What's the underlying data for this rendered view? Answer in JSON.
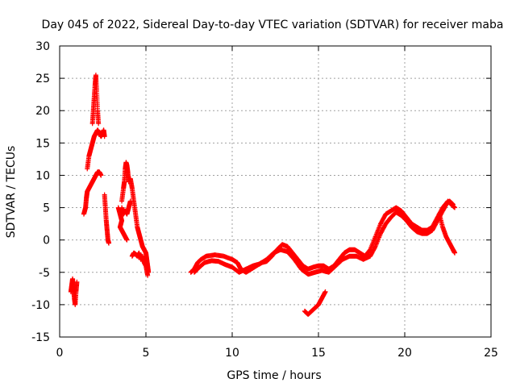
{
  "chart_data": {
    "type": "scatter",
    "title": "Day 045 of 2022, Sidereal Day-to-day VTEC variation (SDTVAR) for receiver maba",
    "xlabel": "GPS time / hours",
    "ylabel": "SDTVAR / TECUs",
    "xlim": [
      0,
      25
    ],
    "ylim": [
      -15,
      30
    ],
    "xticks": [
      0,
      5,
      10,
      15,
      20,
      25
    ],
    "yticks": [
      -15,
      -10,
      -5,
      0,
      5,
      10,
      15,
      20,
      25,
      30
    ],
    "grid": true,
    "marker": "+",
    "color": "#ff0000",
    "series": [
      {
        "name": "seg1",
        "points": [
          [
            0.65,
            -8
          ],
          [
            0.7,
            -7
          ],
          [
            0.75,
            -6
          ],
          [
            0.8,
            -7.5
          ],
          [
            0.85,
            -9
          ],
          [
            0.9,
            -10
          ],
          [
            0.95,
            -8
          ],
          [
            1.0,
            -6.5
          ]
        ]
      },
      {
        "name": "seg2",
        "points": [
          [
            1.4,
            4
          ],
          [
            1.5,
            5
          ],
          [
            1.55,
            6.5
          ],
          [
            1.6,
            7.5
          ],
          [
            1.7,
            8
          ],
          [
            1.8,
            8.5
          ],
          [
            1.9,
            9
          ],
          [
            2.0,
            9.5
          ],
          [
            2.1,
            10
          ],
          [
            2.2,
            10.5
          ],
          [
            2.3,
            10.5
          ],
          [
            2.4,
            10
          ]
        ]
      },
      {
        "name": "seg3",
        "points": [
          [
            1.6,
            11
          ],
          [
            1.7,
            13
          ],
          [
            1.8,
            14
          ],
          [
            1.9,
            15
          ],
          [
            2.0,
            16
          ],
          [
            2.1,
            16.5
          ],
          [
            2.2,
            17
          ],
          [
            2.3,
            16.5
          ],
          [
            2.4,
            16
          ],
          [
            2.5,
            16.5
          ],
          [
            2.55,
            17
          ],
          [
            2.6,
            16
          ]
        ]
      },
      {
        "name": "seg4",
        "points": [
          [
            1.9,
            18
          ],
          [
            1.95,
            20
          ],
          [
            2.0,
            22
          ],
          [
            2.05,
            24
          ],
          [
            2.1,
            25.5
          ],
          [
            2.15,
            23
          ],
          [
            2.2,
            20
          ],
          [
            2.25,
            18
          ]
        ]
      },
      {
        "name": "seg5",
        "points": [
          [
            2.6,
            7
          ],
          [
            2.65,
            5
          ],
          [
            2.7,
            3
          ],
          [
            2.75,
            1.5
          ],
          [
            2.8,
            0
          ],
          [
            2.85,
            -0.5
          ]
        ]
      },
      {
        "name": "seg6",
        "points": [
          [
            3.4,
            5
          ],
          [
            3.5,
            4
          ],
          [
            3.6,
            3
          ],
          [
            3.5,
            2
          ],
          [
            3.6,
            1.5
          ],
          [
            3.7,
            1
          ],
          [
            3.8,
            0.5
          ],
          [
            3.9,
            0
          ]
        ]
      },
      {
        "name": "seg7",
        "points": [
          [
            3.6,
            6
          ],
          [
            3.7,
            8
          ],
          [
            3.75,
            9
          ],
          [
            3.8,
            11
          ],
          [
            3.85,
            12
          ],
          [
            3.9,
            11.5
          ],
          [
            3.95,
            10.5
          ],
          [
            4.0,
            9
          ]
        ]
      },
      {
        "name": "seg8",
        "points": [
          [
            3.6,
            5
          ],
          [
            3.7,
            4
          ],
          [
            3.8,
            4.5
          ],
          [
            3.9,
            4
          ],
          [
            4.0,
            5
          ],
          [
            4.1,
            6
          ]
        ]
      },
      {
        "name": "seg9",
        "points": [
          [
            4.1,
            9.5
          ],
          [
            4.2,
            8
          ],
          [
            4.3,
            6
          ],
          [
            4.4,
            4
          ],
          [
            4.5,
            2
          ],
          [
            4.6,
            1
          ],
          [
            4.7,
            0
          ],
          [
            4.8,
            -1
          ],
          [
            4.9,
            -1.5
          ],
          [
            5.0,
            -2
          ],
          [
            5.05,
            -3
          ],
          [
            5.1,
            -4
          ],
          [
            5.15,
            -5
          ]
        ]
      },
      {
        "name": "seg10",
        "points": [
          [
            4.2,
            -2.5
          ],
          [
            4.3,
            -2
          ],
          [
            4.4,
            -2.2
          ],
          [
            4.5,
            -2.5
          ],
          [
            4.6,
            -2
          ],
          [
            4.7,
            -3
          ],
          [
            4.8,
            -2.5
          ],
          [
            4.9,
            -3.5
          ],
          [
            5.0,
            -4
          ],
          [
            5.1,
            -5.5
          ]
        ]
      },
      {
        "name": "seg11",
        "points": [
          [
            7.6,
            -5
          ],
          [
            7.8,
            -4.5
          ],
          [
            8.0,
            -3.5
          ],
          [
            8.2,
            -3
          ],
          [
            8.5,
            -2.5
          ],
          [
            9.0,
            -2.3
          ],
          [
            9.5,
            -2.5
          ],
          [
            10.0,
            -3
          ],
          [
            10.3,
            -3.5
          ],
          [
            10.5,
            -4.5
          ],
          [
            10.8,
            -5
          ],
          [
            11.1,
            -4.5
          ],
          [
            11.4,
            -4
          ],
          [
            11.7,
            -3.5
          ],
          [
            12.0,
            -3.3
          ],
          [
            12.3,
            -2.5
          ],
          [
            12.6,
            -1.5
          ],
          [
            12.9,
            -0.7
          ],
          [
            13.2,
            -1
          ],
          [
            13.5,
            -2
          ],
          [
            13.8,
            -3
          ],
          [
            14.1,
            -4
          ],
          [
            14.4,
            -4.5
          ],
          [
            14.7,
            -4.2
          ],
          [
            15.0,
            -4
          ],
          [
            15.3,
            -4
          ],
          [
            15.6,
            -4.5
          ],
          [
            15.9,
            -4
          ],
          [
            16.2,
            -3
          ],
          [
            16.5,
            -2
          ],
          [
            16.8,
            -1.5
          ],
          [
            17.1,
            -1.5
          ],
          [
            17.4,
            -2
          ],
          [
            17.7,
            -2.5
          ],
          [
            18.0,
            -1.5
          ],
          [
            18.3,
            0.5
          ],
          [
            18.6,
            2.5
          ],
          [
            18.9,
            4
          ],
          [
            19.2,
            4.5
          ],
          [
            19.5,
            5
          ],
          [
            19.8,
            4.5
          ],
          [
            20.1,
            3.5
          ],
          [
            20.4,
            2.5
          ],
          [
            20.7,
            2
          ],
          [
            21.0,
            1.5
          ],
          [
            21.3,
            1.5
          ],
          [
            21.6,
            2
          ],
          [
            21.9,
            3.5
          ],
          [
            22.2,
            5
          ],
          [
            22.5,
            6
          ],
          [
            22.7,
            5.5
          ],
          [
            22.9,
            5
          ]
        ]
      },
      {
        "name": "seg12",
        "points": [
          [
            7.8,
            -5
          ],
          [
            8.1,
            -4.2
          ],
          [
            8.4,
            -3.5
          ],
          [
            8.8,
            -3.2
          ],
          [
            9.2,
            -3.3
          ],
          [
            9.6,
            -3.8
          ],
          [
            10.0,
            -4.2
          ],
          [
            10.4,
            -5
          ],
          [
            10.8,
            -4.5
          ],
          [
            11.2,
            -4
          ],
          [
            11.6,
            -3.7
          ],
          [
            12.0,
            -3
          ],
          [
            12.4,
            -2
          ],
          [
            12.8,
            -1.5
          ],
          [
            13.2,
            -1.8
          ],
          [
            13.6,
            -3
          ],
          [
            14.0,
            -4.5
          ],
          [
            14.4,
            -5.3
          ],
          [
            14.8,
            -5
          ],
          [
            15.2,
            -4.7
          ],
          [
            15.6,
            -5
          ],
          [
            16.0,
            -4
          ],
          [
            16.4,
            -3
          ],
          [
            16.8,
            -2.5
          ],
          [
            17.2,
            -2.5
          ],
          [
            17.6,
            -3
          ],
          [
            18.0,
            -2.5
          ],
          [
            18.3,
            -1
          ],
          [
            18.6,
            1
          ],
          [
            18.9,
            2.5
          ],
          [
            19.2,
            3.5
          ],
          [
            19.5,
            4.3
          ],
          [
            19.8,
            3.8
          ],
          [
            20.1,
            3
          ],
          [
            20.4,
            2
          ],
          [
            20.7,
            1.3
          ],
          [
            21.0,
            1
          ],
          [
            21.3,
            1
          ],
          [
            21.6,
            1.5
          ],
          [
            21.9,
            3
          ],
          [
            22.2,
            4.5
          ],
          [
            22.4,
            5.5
          ],
          [
            22.6,
            6
          ],
          [
            22.8,
            5.5
          ]
        ]
      },
      {
        "name": "seg13",
        "points": [
          [
            22.0,
            4
          ],
          [
            22.2,
            2
          ],
          [
            22.4,
            0.5
          ],
          [
            22.6,
            -0.5
          ],
          [
            22.8,
            -1.5
          ],
          [
            22.9,
            -2
          ]
        ]
      },
      {
        "name": "seg14",
        "points": [
          [
            14.2,
            -11
          ],
          [
            14.4,
            -11.5
          ],
          [
            14.6,
            -11
          ],
          [
            14.8,
            -10.5
          ],
          [
            15.0,
            -10
          ],
          [
            15.2,
            -9
          ],
          [
            15.4,
            -8
          ]
        ]
      }
    ]
  }
}
